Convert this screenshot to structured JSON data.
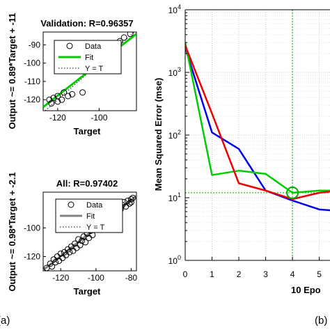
{
  "panel_labels": {
    "a": "(a)",
    "b": "(b)"
  },
  "chart_data": [
    {
      "type": "scatter",
      "title": "Validation: R=0.96357",
      "xlabel": "Target",
      "ylabel": "Output ~= 0.89*Target + -11",
      "xlim": [
        -127,
        -82
      ],
      "ylim": [
        -126,
        -83
      ],
      "xticks": [
        -120,
        -100
      ],
      "xticklabels": [
        "-120",
        "-100"
      ],
      "yticks": [
        -120,
        -110,
        -100,
        -90
      ],
      "yticklabels": [
        "-120",
        "-110",
        "-100",
        "-90"
      ],
      "grid": false,
      "legend": {
        "position": "top-right",
        "entries": [
          "Data",
          "Fit",
          "Y = T"
        ]
      },
      "fit_color": "#00cc00",
      "fit": {
        "slope": 0.89,
        "intercept": -11
      },
      "points": [
        [
          -124,
          -120
        ],
        [
          -123,
          -122
        ],
        [
          -122,
          -119
        ],
        [
          -120,
          -118
        ],
        [
          -120,
          -121
        ],
        [
          -118,
          -120
        ],
        [
          -117,
          -116
        ],
        [
          -115,
          -118
        ],
        [
          -113,
          -117
        ],
        [
          -108,
          -116
        ],
        [
          -103,
          -100
        ],
        [
          -98,
          -96
        ],
        [
          -95,
          -93
        ],
        [
          -93,
          -92
        ],
        [
          -92,
          -96
        ],
        [
          -90,
          -88
        ],
        [
          -88,
          -86
        ],
        [
          -85,
          -84
        ]
      ]
    },
    {
      "type": "scatter",
      "title": "All: R=0.97402",
      "xlabel": "Target",
      "ylabel": "Output ~= 0.98*Target + -2.1",
      "xlim": [
        -130,
        -77
      ],
      "ylim": [
        -130,
        -75
      ],
      "xticks": [
        -120,
        -100,
        -80
      ],
      "xticklabels": [
        "-120",
        "-100",
        "-80"
      ],
      "yticks": [
        -120,
        -100
      ],
      "yticklabels": [
        "-120",
        "-100"
      ],
      "grid": false,
      "legend": {
        "position": "top-right",
        "entries": [
          "Data",
          "Fit",
          "Y = T"
        ]
      },
      "fit_color": "#808080",
      "fit": {
        "slope": 0.98,
        "intercept": -2.1
      },
      "points": [
        [
          -128,
          -128
        ],
        [
          -126,
          -125
        ],
        [
          -125,
          -127
        ],
        [
          -124,
          -122
        ],
        [
          -123,
          -124
        ],
        [
          -122,
          -120
        ],
        [
          -121,
          -123
        ],
        [
          -120,
          -118
        ],
        [
          -119,
          -121
        ],
        [
          -118,
          -117
        ],
        [
          -117,
          -119
        ],
        [
          -116,
          -115
        ],
        [
          -115,
          -117
        ],
        [
          -114,
          -113
        ],
        [
          -113,
          -116
        ],
        [
          -112,
          -111
        ],
        [
          -111,
          -114
        ],
        [
          -110,
          -108
        ],
        [
          -109,
          -112
        ],
        [
          -108,
          -109
        ],
        [
          -107,
          -106
        ],
        [
          -106,
          -110
        ],
        [
          -105,
          -104
        ],
        [
          -104,
          -107
        ],
        [
          -103,
          -102
        ],
        [
          -102,
          -105
        ],
        [
          -100,
          -99
        ],
        [
          -99,
          -101
        ],
        [
          -98,
          -96
        ],
        [
          -97,
          -100
        ],
        [
          -96,
          -95
        ],
        [
          -94,
          -97
        ],
        [
          -92,
          -93
        ],
        [
          -90,
          -90
        ],
        [
          -88,
          -88
        ],
        [
          -87,
          -85
        ],
        [
          -86,
          -87
        ],
        [
          -85,
          -84
        ],
        [
          -84,
          -82
        ],
        [
          -83,
          -85
        ],
        [
          -82,
          -81
        ],
        [
          -81,
          -83
        ],
        [
          -80,
          -80
        ],
        [
          -79,
          -79
        ],
        [
          -80,
          -82
        ]
      ]
    },
    {
      "type": "line",
      "xlabel": "10 Epo",
      "ylabel": "Mean Squared Error  (mse)",
      "xlim": [
        0,
        5.4
      ],
      "ylim_log10": [
        0,
        4
      ],
      "y_scale": "log",
      "xticks": [
        0,
        1,
        2,
        3,
        4,
        5
      ],
      "xticklabels": [
        "0",
        "1",
        "2",
        "3",
        "4",
        "5"
      ],
      "yticks": [
        1,
        10,
        100,
        1000,
        10000
      ],
      "ytick_base": "10",
      "ytick_exponents": [
        "0",
        "1",
        "2",
        "3",
        "4"
      ],
      "grid": true,
      "series": [
        {
          "color": "#0000ee",
          "x": [
            0,
            1,
            2,
            3,
            4,
            5,
            5.4
          ],
          "values": [
            2500,
            110,
            60,
            13,
            9,
            6.5,
            6.3
          ]
        },
        {
          "color": "#00cc00",
          "x": [
            0,
            1,
            2,
            3,
            4,
            5,
            5.4
          ],
          "values": [
            3000,
            23,
            27,
            24,
            12,
            13,
            13
          ]
        },
        {
          "color": "#ee0000",
          "x": [
            0,
            1,
            2,
            3,
            4,
            5,
            5.4
          ],
          "values": [
            2700,
            220,
            17,
            13,
            9.5,
            12,
            12.5
          ]
        }
      ],
      "best": {
        "x": 4,
        "y": 12,
        "color": "#00aa00"
      }
    }
  ]
}
